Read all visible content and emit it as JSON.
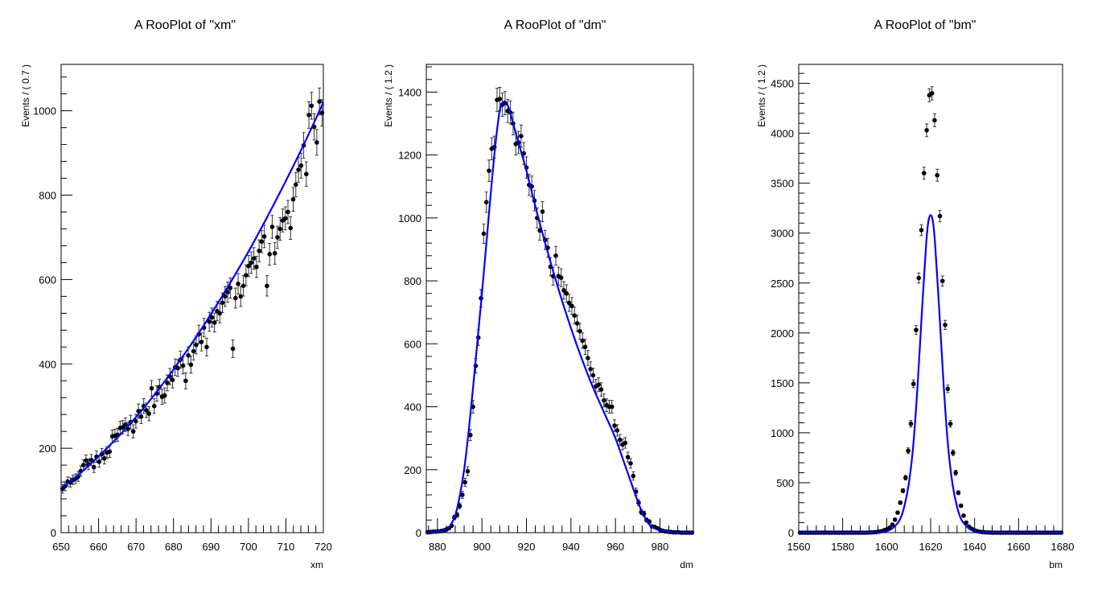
{
  "chart_data": [
    {
      "type": "scatter",
      "title": "A RooPlot of \"xm\"",
      "xlabel": "xm",
      "ylabel": "Events / ( 0.7 )",
      "xlim": [
        650,
        720
      ],
      "ylim": [
        0,
        1110
      ],
      "x_ticks": [
        "650",
        "660",
        "670",
        "680",
        "690",
        "700",
        "710",
        "720"
      ],
      "y_ticks": [
        "0",
        "200",
        "400",
        "600",
        "800",
        "1000"
      ],
      "bin_width": 0.7,
      "grid": false,
      "data_color": "#000000",
      "fit_color": "#0000ff",
      "values": [
        104,
        110,
        121,
        119,
        125,
        128,
        133,
        146,
        160,
        171,
        162,
        172,
        155,
        180,
        168,
        186,
        176,
        190,
        192,
        228,
        230,
        232,
        248,
        250,
        256,
        246,
        262,
        240,
        264,
        288,
        275,
        300,
        290,
        282,
        342,
        300,
        330,
        345,
        322,
        325,
        355,
        370,
        362,
        392,
        390,
        410,
        396,
        360,
        420,
        398,
        430,
        445,
        470,
        452,
        486,
        440,
        500,
        510,
        498,
        525,
        520,
        545,
        560,
        570,
        580,
        436,
        556,
        590,
        560,
        585,
        610,
        632,
        640,
        650,
        630,
        668,
        690,
        702,
        585,
        660,
        725,
        662,
        700,
        720,
        740,
        745,
        760,
        722,
        790,
        825,
        860,
        870,
        918,
        850,
        990,
        1012,
        962,
        925,
        1022,
        995
      ],
      "fit_curve": [
        [
          650,
          105
        ],
        [
          655,
          140
        ],
        [
          660,
          181
        ],
        [
          665,
          225
        ],
        [
          670,
          274
        ],
        [
          675,
          328
        ],
        [
          680,
          387
        ],
        [
          685,
          450
        ],
        [
          690,
          518
        ],
        [
          695,
          590
        ],
        [
          700,
          666
        ],
        [
          705,
          748
        ],
        [
          710,
          834
        ],
        [
          715,
          924
        ],
        [
          720,
          1020
        ]
      ]
    },
    {
      "type": "scatter",
      "title": "A RooPlot of \"dm\"",
      "xlabel": "dm",
      "ylabel": "Events / ( 1.2 )",
      "xlim": [
        875,
        995
      ],
      "ylim": [
        0,
        1488
      ],
      "x_ticks": [
        "880",
        "900",
        "920",
        "940",
        "960",
        "980"
      ],
      "y_ticks": [
        "0",
        "200",
        "400",
        "600",
        "800",
        "1000",
        "1200",
        "1400"
      ],
      "bin_width": 1.2,
      "grid": false,
      "data_color": "#000000",
      "fit_color": "#0000ff",
      "values": [
        1,
        2,
        3,
        3,
        4,
        5,
        7,
        10,
        14,
        22,
        48,
        56,
        85,
        120,
        160,
        195,
        310,
        400,
        530,
        620,
        745,
        950,
        1050,
        1150,
        1220,
        1225,
        1375,
        1378,
        1360,
        1365,
        1340,
        1335,
        1300,
        1235,
        1240,
        1260,
        1205,
        1160,
        1105,
        1100,
        1055,
        1000,
        960,
        1020,
        930,
        905,
        845,
        815,
        880,
        815,
        810,
        770,
        760,
        730,
        720,
        690,
        665,
        640,
        610,
        590,
        555,
        520,
        500,
        465,
        470,
        455,
        420,
        405,
        400,
        400,
        340,
        325,
        295,
        280,
        285,
        240,
        220,
        180,
        130,
        95,
        65,
        60,
        40,
        35,
        20,
        18,
        14,
        9,
        6,
        4,
        3,
        2,
        1,
        1,
        1,
        0,
        0,
        0,
        0,
        0
      ],
      "fit_curve": [
        [
          875,
          0
        ],
        [
          880,
          3
        ],
        [
          884,
          10
        ],
        [
          886,
          25
        ],
        [
          888,
          55
        ],
        [
          890,
          115
        ],
        [
          892,
          200
        ],
        [
          894,
          320
        ],
        [
          896,
          460
        ],
        [
          898,
          610
        ],
        [
          900,
          760
        ],
        [
          902,
          920
        ],
        [
          904,
          1080
        ],
        [
          906,
          1230
        ],
        [
          908,
          1340
        ],
        [
          910,
          1370
        ],
        [
          912,
          1350
        ],
        [
          914,
          1300
        ],
        [
          916,
          1250
        ],
        [
          918,
          1200
        ],
        [
          920,
          1150
        ],
        [
          925,
          1010
        ],
        [
          930,
          880
        ],
        [
          935,
          760
        ],
        [
          940,
          650
        ],
        [
          945,
          550
        ],
        [
          950,
          460
        ],
        [
          955,
          380
        ],
        [
          960,
          300
        ],
        [
          965,
          200
        ],
        [
          970,
          100
        ],
        [
          973,
          50
        ],
        [
          976,
          20
        ],
        [
          980,
          8
        ],
        [
          985,
          2
        ],
        [
          995,
          0
        ]
      ]
    },
    {
      "type": "scatter",
      "title": "A RooPlot of \"bm\"",
      "xlabel": "bm",
      "ylabel": "Events / ( 1.2 )",
      "xlim": [
        1560,
        1680
      ],
      "ylim": [
        0,
        4690
      ],
      "x_ticks": [
        "1560",
        "1580",
        "1600",
        "1620",
        "1640",
        "1660",
        "1680"
      ],
      "y_ticks": [
        "0",
        "500",
        "1000",
        "1500",
        "2000",
        "2500",
        "3000",
        "3500",
        "4000",
        "4500"
      ],
      "bin_width": 1.2,
      "grid": false,
      "data_color": "#000000",
      "fit_color": "#0000ff",
      "values": [
        0,
        0,
        0,
        0,
        0,
        0,
        0,
        0,
        0,
        0,
        0,
        0,
        0,
        0,
        0,
        0,
        0,
        0,
        0,
        0,
        0,
        0,
        0,
        0,
        0,
        0,
        1,
        2,
        4,
        6,
        10,
        15,
        25,
        35,
        50,
        80,
        130,
        200,
        300,
        420,
        550,
        820,
        1090,
        1490,
        2030,
        2550,
        3030,
        3600,
        4030,
        4380,
        4400,
        4130,
        3580,
        3170,
        2520,
        2080,
        1440,
        1090,
        800,
        600,
        400,
        270,
        170,
        100,
        60,
        40,
        25,
        15,
        10,
        6,
        4,
        2,
        1,
        0,
        0,
        0,
        0,
        0,
        0,
        0,
        0,
        0,
        0,
        0,
        0,
        0,
        0,
        0,
        0,
        0,
        0,
        0,
        0,
        0,
        0,
        0,
        0,
        0,
        0,
        0
      ],
      "fit_curve": [
        [
          1560,
          0
        ],
        [
          1595,
          3
        ],
        [
          1600,
          15
        ],
        [
          1603,
          50
        ],
        [
          1606,
          130
        ],
        [
          1608,
          260
        ],
        [
          1610,
          480
        ],
        [
          1612,
          850
        ],
        [
          1614,
          1450
        ],
        [
          1616,
          2200
        ],
        [
          1618,
          2900
        ],
        [
          1619,
          3120
        ],
        [
          1620,
          3180
        ],
        [
          1621,
          3120
        ],
        [
          1622,
          2900
        ],
        [
          1624,
          2200
        ],
        [
          1626,
          1450
        ],
        [
          1628,
          850
        ],
        [
          1630,
          480
        ],
        [
          1632,
          260
        ],
        [
          1634,
          130
        ],
        [
          1637,
          50
        ],
        [
          1640,
          15
        ],
        [
          1645,
          3
        ],
        [
          1680,
          0
        ]
      ]
    }
  ]
}
